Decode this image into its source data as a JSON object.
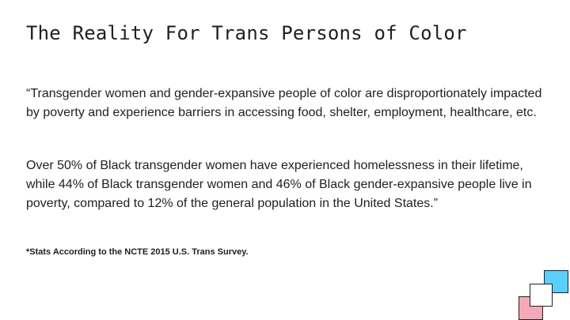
{
  "slide": {
    "title": "The Reality For Trans Persons of Color",
    "paragraphs": [
      "“Transgender women and gender-expansive people of color are disproportionately impacted by poverty and experience barriers in accessing food, shelter, employment, healthcare, etc.",
      "Over 50% of Black transgender women have experienced homelessness in their lifetime, while 44% of Black transgender women and 46% of Black gender-expansive people live in poverty, compared to 12% of the general population in the United States.”"
    ],
    "footnote": "*Stats According to the NCTE 2015 U.S. Trans Survey.",
    "decor": {
      "square_colors": {
        "blue": "#5bcefa",
        "pink": "#f5a9b8",
        "white": "#ffffff"
      }
    }
  }
}
